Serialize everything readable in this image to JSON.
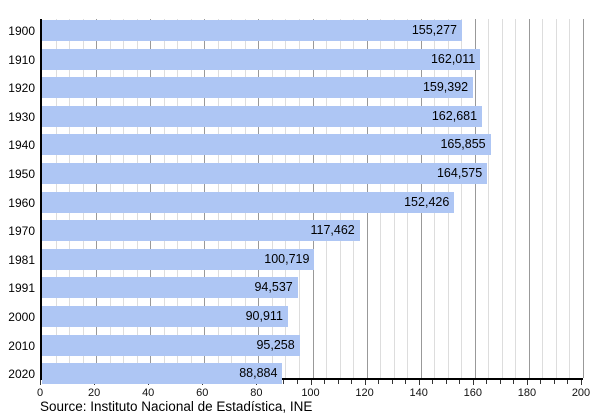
{
  "chart_data": {
    "type": "bar",
    "orientation": "horizontal",
    "title": "",
    "xlabel": "",
    "ylabel": "",
    "categories": [
      "1900",
      "1910",
      "1920",
      "1930",
      "1940",
      "1950",
      "1960",
      "1970",
      "1981",
      "1991",
      "2000",
      "2010",
      "2020"
    ],
    "values": [
      155277,
      162011,
      159392,
      162681,
      165855,
      164575,
      152426,
      117462,
      100719,
      94537,
      90911,
      95258,
      88884
    ],
    "value_labels": [
      "155,277",
      "162,011",
      "159,392",
      "162,681",
      "165,855",
      "164,575",
      "152,426",
      "117,462",
      "100,719",
      "94,537",
      "90,911",
      "95,258",
      "88,884"
    ],
    "x_axis": {
      "min": 0,
      "max": 200,
      "major_step": 20,
      "minor_step": 5,
      "tick_labels": [
        "0",
        "20",
        "40",
        "60",
        "80",
        "100",
        "120",
        "140",
        "160",
        "180",
        "200"
      ],
      "value_scale_per_unit": 1000
    },
    "grid": true,
    "legend": "none",
    "source": "Source: Instituto Nacional de Estadística, INE"
  },
  "colors": {
    "bar_fill": "#aec6f4",
    "grid_minor": "#dddddd",
    "grid_major": "#999999",
    "axis_line": "#000000",
    "text": "#000000",
    "background": "#ffffff"
  }
}
